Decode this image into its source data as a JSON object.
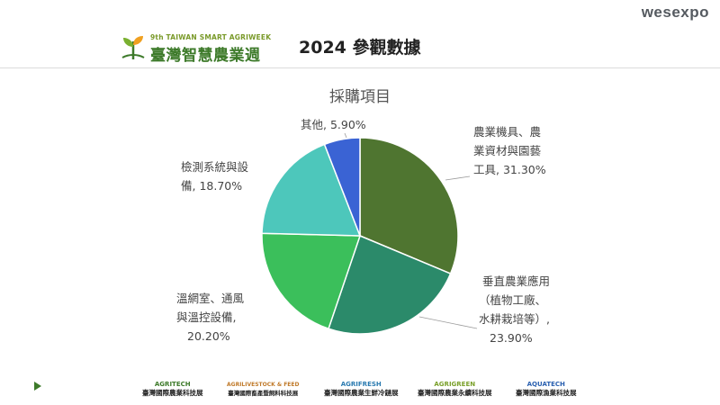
{
  "header": {
    "logo_en": "9th TAIWAN SMART AGRIWEEK",
    "logo_zh": "臺灣智慧農業週",
    "page_title": "2024 參觀數據",
    "brand": "wesexpo"
  },
  "chart_data": {
    "type": "pie",
    "title": "採購項目",
    "slices": [
      {
        "label": "農業機具、農業資材與園藝工具",
        "value": 31.3,
        "value_text": "31.30%",
        "color": "#4f7530"
      },
      {
        "label": "垂直農業應用（植物工廠、水耕栽培等）",
        "value": 23.9,
        "value_text": "23.90%",
        "color": "#2b8a6a"
      },
      {
        "label": "溫網室、通風與溫控設備",
        "value": 20.2,
        "value_text": "20.20%",
        "color": "#3bbf5b"
      },
      {
        "label": "檢測系統與設備",
        "value": 18.7,
        "value_text": "18.70%",
        "color": "#4dc7bb"
      },
      {
        "label": "其他",
        "value": 5.9,
        "value_text": "5.90%",
        "color": "#3a63d4"
      }
    ],
    "labels_display": {
      "s0": [
        "農業機具、農",
        "業資材與園藝",
        "工具, 31.30%"
      ],
      "s1": [
        "垂直農業應用",
        "（植物工廠、",
        "水耕栽培等）,",
        "23.90%"
      ],
      "s2": [
        "溫網室、通風",
        "與溫控設備,",
        "20.20%"
      ],
      "s3": [
        "檢測系統與設",
        "備, 18.70%"
      ],
      "s4": [
        "其他, 5.90%"
      ]
    }
  },
  "footer": {
    "logos": [
      {
        "en": "AGRITECH",
        "zh": "臺灣國際農業科技展",
        "color": "#3d7a2a"
      },
      {
        "en": "AGRILIVESTOCK & FEED",
        "zh": "臺灣國際畜產暨飼料科技展",
        "color": "#c07a2a"
      },
      {
        "en": "AGRIFRESH",
        "zh": "臺灣國際農業生鮮冷鏈展",
        "color": "#2a7ab0"
      },
      {
        "en": "AGRIGREEN",
        "zh": "臺灣國際農業永續科技展",
        "color": "#7aa02a"
      },
      {
        "en": "AQUATECH",
        "zh": "臺灣國際漁業科技展",
        "color": "#2a60b0"
      }
    ]
  }
}
